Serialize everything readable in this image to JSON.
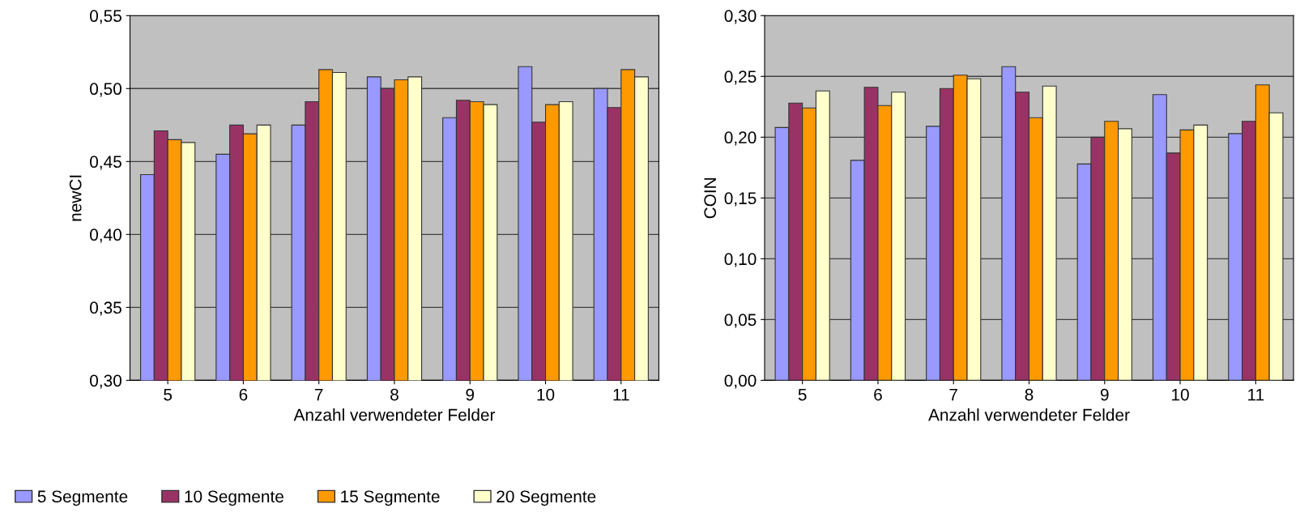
{
  "chart_data": [
    {
      "type": "bar",
      "xlabel": "Anzahl verwendeter Felder",
      "ylabel": "newCI",
      "categories": [
        "5",
        "6",
        "7",
        "8",
        "9",
        "10",
        "11"
      ],
      "ylim": [
        0.3,
        0.55
      ],
      "yticks": [
        {
          "value": 0.3,
          "label": "0,30"
        },
        {
          "value": 0.35,
          "label": "0,35"
        },
        {
          "value": 0.4,
          "label": "0,40"
        },
        {
          "value": 0.45,
          "label": "0,45"
        },
        {
          "value": 0.5,
          "label": "0,50"
        },
        {
          "value": 0.55,
          "label": "0,55"
        }
      ],
      "grid": "y",
      "legend": "bottom",
      "series": [
        {
          "name": "5 Segmente",
          "color": "#9999ff",
          "values": [
            0.441,
            0.455,
            0.475,
            0.508,
            0.48,
            0.515,
            0.5
          ]
        },
        {
          "name": "10 Segmente",
          "color": "#993366",
          "values": [
            0.471,
            0.475,
            0.491,
            0.5,
            0.492,
            0.477,
            0.487
          ]
        },
        {
          "name": "15 Segmente",
          "color": "#ff9900",
          "values": [
            0.465,
            0.469,
            0.513,
            0.506,
            0.491,
            0.489,
            0.513
          ]
        },
        {
          "name": "20 Segmente",
          "color": "#ffffcc",
          "values": [
            0.463,
            0.475,
            0.511,
            0.508,
            0.489,
            0.491,
            0.508
          ]
        }
      ]
    },
    {
      "type": "bar",
      "xlabel": "Anzahl verwendeter Felder",
      "ylabel": "COIN",
      "categories": [
        "5",
        "6",
        "7",
        "8",
        "9",
        "10",
        "11"
      ],
      "ylim": [
        0.0,
        0.3
      ],
      "yticks": [
        {
          "value": 0.0,
          "label": "0,00"
        },
        {
          "value": 0.05,
          "label": "0,05"
        },
        {
          "value": 0.1,
          "label": "0,10"
        },
        {
          "value": 0.15,
          "label": "0,15"
        },
        {
          "value": 0.2,
          "label": "0,20"
        },
        {
          "value": 0.25,
          "label": "0,25"
        },
        {
          "value": 0.3,
          "label": "0,30"
        }
      ],
      "grid": "y",
      "series": [
        {
          "color": "#9999ff",
          "values": [
            0.208,
            0.181,
            0.209,
            0.258,
            0.178,
            0.235,
            0.203
          ]
        },
        {
          "color": "#993366",
          "values": [
            0.228,
            0.241,
            0.24,
            0.237,
            0.2,
            0.187,
            0.213
          ]
        },
        {
          "color": "#ff9900",
          "values": [
            0.224,
            0.226,
            0.251,
            0.216,
            0.213,
            0.206,
            0.243
          ]
        },
        {
          "color": "#ffffcc",
          "values": [
            0.238,
            0.237,
            0.248,
            0.242,
            0.207,
            0.21,
            0.22
          ]
        }
      ]
    }
  ]
}
